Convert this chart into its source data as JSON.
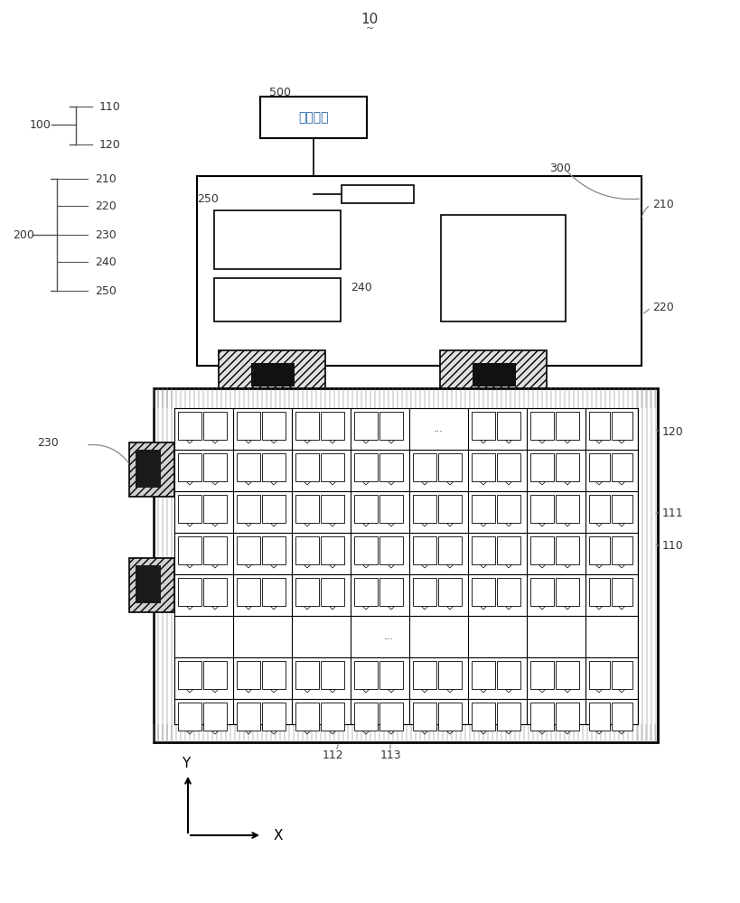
{
  "bg_color": "#ffffff",
  "lc": "#000000",
  "gray": "#555555",
  "light_gray": "#cccccc",
  "chinese_text": "主板电源",
  "blue_text_color": "#2060a0",
  "annotation_color": "#888888"
}
